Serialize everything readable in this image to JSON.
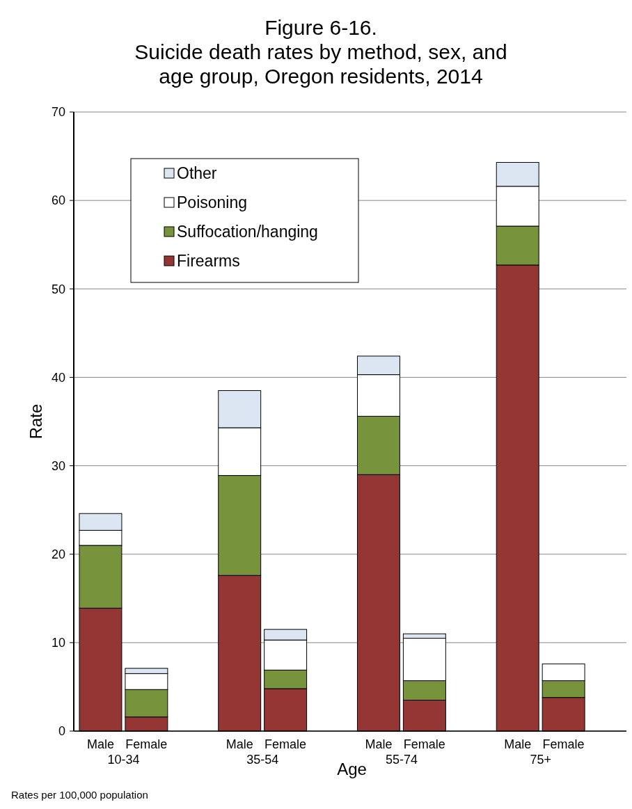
{
  "chart_data": {
    "type": "bar",
    "stacked": true,
    "title": "Figure 6-16.\nSuicide death rates by method, sex, and age group, Oregon residents, 2014",
    "xlabel": "Age",
    "ylabel": "Rate",
    "categories": [
      "Male",
      "Female",
      "Male",
      "Female",
      "Male",
      "Female",
      "Male",
      "Female"
    ],
    "annotations": [
      "10-34",
      "35-54",
      "55-74",
      "75+",
      "Rates per 100,000 population"
    ],
    "series": [
      {
        "name": "Firearms",
        "color": "#943634",
        "values": [
          13.9,
          1.6,
          17.6,
          4.8,
          29.0,
          3.5,
          52.7,
          3.8
        ]
      },
      {
        "name": "Suffocation/hanging",
        "color": "#77933c",
        "values": [
          7.1,
          3.1,
          11.3,
          2.1,
          6.6,
          2.2,
          4.4,
          1.9
        ]
      },
      {
        "name": "Poisoning",
        "color": "#ffffff",
        "values": [
          1.7,
          1.8,
          5.4,
          3.4,
          4.7,
          4.8,
          4.5,
          1.9
        ]
      },
      {
        "name": "Other",
        "color": "#dce6f2",
        "values": [
          1.9,
          0.6,
          4.2,
          1.2,
          2.1,
          0.5,
          2.7,
          0
        ]
      }
    ],
    "ylim": [
      0,
      70
    ],
    "yticks": [
      0,
      10,
      20,
      30,
      40,
      50,
      60,
      70
    ],
    "grid": "y",
    "legend": "top left"
  }
}
